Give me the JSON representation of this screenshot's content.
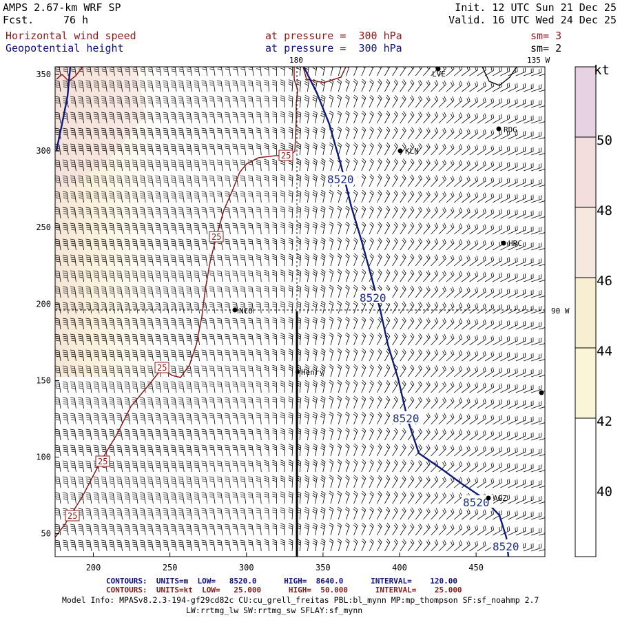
{
  "header": {
    "model": "AMPS 2.67-km WRF SP",
    "fcst_label": "Fcst.",
    "fcst_value": "76 h",
    "init": "Init. 12 UTC Sun 21 Dec 25",
    "valid": "Valid. 16 UTC Wed 24 Dec 25",
    "field1": "Horizontal wind speed",
    "field2": "Geopotential height",
    "level1": "at pressure =  300 hPa",
    "level2": "at pressure =  300 hPa",
    "sm1": "sm= 3",
    "sm2": "sm= 2"
  },
  "map": {
    "lon_top_left": "180",
    "lon_top_right": "135 W",
    "lon_right": "90 W",
    "x_ticks": [
      "200",
      "250",
      "300",
      "350",
      "400",
      "450"
    ],
    "y_ticks": [
      "350",
      "300",
      "250",
      "200",
      "150",
      "100",
      "50"
    ],
    "stations": [
      "LVE",
      "RDG",
      "KLN",
      "HRC",
      "NCO",
      "Henry",
      "AGZ"
    ],
    "height_contour_label": "8520",
    "wind_contour_label": "25",
    "colors": {
      "height_contour": "#0d1a7a",
      "wind_contour": "#8b1a1a",
      "section_line": "#000000"
    }
  },
  "legend": {
    "unit": "kt",
    "labels": [
      "50",
      "48",
      "46",
      "44",
      "42",
      "40"
    ],
    "colors": [
      "#e6d2e2",
      "#f3dede",
      "#f6e8de",
      "#f8efd2",
      "#fbf5d8",
      "#ffffff"
    ]
  },
  "footer": {
    "line1": "CONTOURS:  UNITS=m  LOW=   8520.0      HIGH=  8640.0      INTERVAL=    120.00",
    "line2": "CONTOURS:  UNITS=kt  LOW=   25.000      HIGH=  50.000      INTERVAL=    25.000",
    "info1": "Model Info: MPASv8.2.3-194-gf29cd82c CU:cu_grell_freitas PBL:bl_mynn MP:mp_thompson SF:sf_noahmp 2.7",
    "info2": "LW:rrtmg_lw SW:rrtmg_sw SFLAY:sf_mynn"
  }
}
